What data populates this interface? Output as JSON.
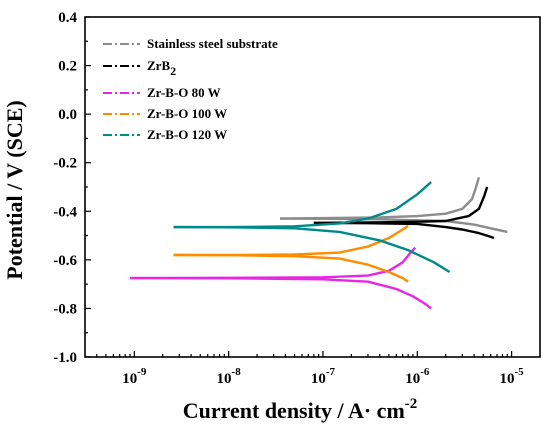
{
  "chart_data": {
    "type": "line",
    "xlabel": "Current density / A· cm",
    "xlabel_sup": "-2",
    "ylabel": "Potential / V (SCE)",
    "x_scale": "log",
    "xlim": [
      3e-10,
      2e-05
    ],
    "ylim": [
      -1.0,
      0.4
    ],
    "x_ticks": [
      {
        "value": 1e-09,
        "base": "10",
        "exp": "-9"
      },
      {
        "value": 1e-08,
        "base": "10",
        "exp": "-8"
      },
      {
        "value": 1e-07,
        "base": "10",
        "exp": "-7"
      },
      {
        "value": 1e-06,
        "base": "10",
        "exp": "-6"
      },
      {
        "value": 1e-05,
        "base": "10",
        "exp": "-5"
      }
    ],
    "y_ticks": [
      {
        "value": 0.4,
        "label": "0.4"
      },
      {
        "value": 0.2,
        "label": "0.2"
      },
      {
        "value": 0.0,
        "label": "0.0"
      },
      {
        "value": -0.2,
        "label": "-0.2"
      },
      {
        "value": -0.4,
        "label": "-0.4"
      },
      {
        "value": -0.6,
        "label": "-0.6"
      },
      {
        "value": -0.8,
        "label": "-0.8"
      },
      {
        "value": -1.0,
        "label": "-1.0"
      }
    ],
    "grid": false,
    "legend_position": "top-left",
    "series": [
      {
        "name": "Stainless steel substrate",
        "color": "#8c8c8c",
        "anodic": [
          [
            3.5e-08,
            -0.43
          ],
          [
            1e-07,
            -0.428
          ],
          [
            4e-07,
            -0.425
          ],
          [
            1e-06,
            -0.42
          ],
          [
            2e-06,
            -0.41
          ],
          [
            3e-06,
            -0.39
          ],
          [
            3.8e-06,
            -0.35
          ],
          [
            4.2e-06,
            -0.3
          ],
          [
            4.5e-06,
            -0.26
          ]
        ],
        "cathodic": [
          [
            3.5e-08,
            -0.43
          ],
          [
            1e-07,
            -0.431
          ],
          [
            4e-07,
            -0.433
          ],
          [
            1e-06,
            -0.437
          ],
          [
            2e-06,
            -0.44
          ],
          [
            4e-06,
            -0.455
          ],
          [
            6e-06,
            -0.47
          ],
          [
            9e-06,
            -0.485
          ]
        ]
      },
      {
        "name": "ZrB",
        "name_sub": "2",
        "color": "#000000",
        "anodic": [
          [
            8e-08,
            -0.448
          ],
          [
            3e-07,
            -0.446
          ],
          [
            1e-06,
            -0.443
          ],
          [
            2e-06,
            -0.44
          ],
          [
            3.5e-06,
            -0.42
          ],
          [
            4.5e-06,
            -0.39
          ],
          [
            5.1e-06,
            -0.34
          ],
          [
            5.5e-06,
            -0.3
          ]
        ],
        "cathodic": [
          [
            8e-08,
            -0.448
          ],
          [
            3e-07,
            -0.449
          ],
          [
            1e-06,
            -0.452
          ],
          [
            2e-06,
            -0.465
          ],
          [
            3e-06,
            -0.475
          ],
          [
            4.5e-06,
            -0.49
          ],
          [
            5.5e-06,
            -0.5
          ],
          [
            6.5e-06,
            -0.51
          ]
        ]
      },
      {
        "name": "Zr-B-O 80 W",
        "color": "#e627e6",
        "anodic": [
          [
            9e-10,
            -0.675
          ],
          [
            1e-08,
            -0.674
          ],
          [
            1e-07,
            -0.672
          ],
          [
            3e-07,
            -0.665
          ],
          [
            5e-07,
            -0.645
          ],
          [
            7e-07,
            -0.61
          ],
          [
            8.5e-07,
            -0.57
          ],
          [
            9.5e-07,
            -0.55
          ]
        ],
        "cathodic": [
          [
            9e-10,
            -0.675
          ],
          [
            1e-08,
            -0.676
          ],
          [
            1e-07,
            -0.68
          ],
          [
            3e-07,
            -0.69
          ],
          [
            6e-07,
            -0.72
          ],
          [
            9e-07,
            -0.75
          ],
          [
            1.2e-06,
            -0.78
          ],
          [
            1.4e-06,
            -0.8
          ]
        ]
      },
      {
        "name": "Zr-B-O 100 W",
        "color": "#ff8c00",
        "anodic": [
          [
            2.6e-09,
            -0.58
          ],
          [
            1e-08,
            -0.58
          ],
          [
            5e-08,
            -0.578
          ],
          [
            1.5e-07,
            -0.57
          ],
          [
            3e-07,
            -0.545
          ],
          [
            5e-07,
            -0.51
          ],
          [
            7e-07,
            -0.475
          ],
          [
            8e-07,
            -0.46
          ]
        ],
        "cathodic": [
          [
            2.6e-09,
            -0.58
          ],
          [
            1e-08,
            -0.581
          ],
          [
            5e-08,
            -0.585
          ],
          [
            1.5e-07,
            -0.595
          ],
          [
            3e-07,
            -0.62
          ],
          [
            5e-07,
            -0.65
          ],
          [
            7e-07,
            -0.675
          ],
          [
            8e-07,
            -0.69
          ]
        ]
      },
      {
        "name": "Zr-B-O 120 W",
        "color": "#008b8b",
        "anodic": [
          [
            2.6e-09,
            -0.465
          ],
          [
            1e-08,
            -0.465
          ],
          [
            5e-08,
            -0.462
          ],
          [
            1.5e-07,
            -0.45
          ],
          [
            3e-07,
            -0.43
          ],
          [
            6e-07,
            -0.39
          ],
          [
            1e-06,
            -0.33
          ],
          [
            1.4e-06,
            -0.28
          ]
        ],
        "cathodic": [
          [
            2.6e-09,
            -0.465
          ],
          [
            1e-08,
            -0.466
          ],
          [
            5e-08,
            -0.47
          ],
          [
            1.5e-07,
            -0.485
          ],
          [
            4e-07,
            -0.52
          ],
          [
            8e-07,
            -0.56
          ],
          [
            1.5e-06,
            -0.61
          ],
          [
            2.2e-06,
            -0.65
          ]
        ]
      }
    ]
  }
}
